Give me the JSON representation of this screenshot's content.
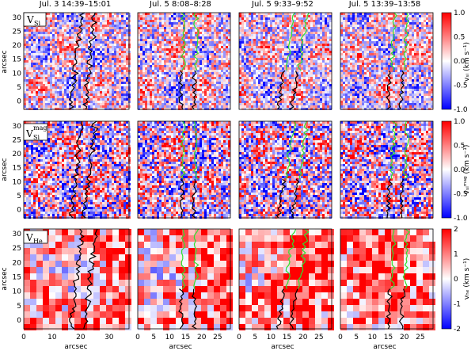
{
  "columns": [
    {
      "label": "Jul. 3  14:39–15:01"
    },
    {
      "label": "Jul. 5  8:08–8:28"
    },
    {
      "label": "Jul. 5  9:33–9:52"
    },
    {
      "label": "Jul. 5  13:39–13:58"
    }
  ],
  "rows": [
    {
      "tag_main": "V",
      "tag_sub": "Si",
      "tag_sup": "",
      "cbar_label": "vₛᵢ (km s⁻¹)",
      "cbar_ticks": [
        "1.0",
        "0.5",
        "0.0",
        "-0.5",
        "-1.0"
      ],
      "y_ticks": [
        "30",
        "25",
        "20",
        "15",
        "10",
        "5",
        "0"
      ],
      "ylabel": "arcsec"
    },
    {
      "tag_main": "V",
      "tag_sub": "Si",
      "tag_sup": "mag",
      "cbar_label": "vₛᵢᵐᵃᵍ (km s⁻¹)",
      "cbar_ticks": [
        "1.0",
        "0.5",
        "0.0",
        "-0.5",
        "-1.0"
      ],
      "y_ticks": [
        "30",
        "25",
        "20",
        "15",
        "10",
        "5",
        "0"
      ],
      "ylabel": "arcsec"
    },
    {
      "tag_main": "V",
      "tag_sub": "He",
      "tag_sup": "",
      "cbar_label": "vₕₑ (km s⁻¹)",
      "cbar_ticks": [
        "2",
        "1",
        "0",
        "-1",
        "-2"
      ],
      "y_ticks": [
        "30",
        "25",
        "20",
        "15",
        "10",
        "5",
        "0"
      ],
      "ylabel": "arcsec"
    }
  ],
  "x_axes": [
    {
      "ticks": [
        "0",
        "10",
        "20",
        "30"
      ],
      "label": "arcsec"
    },
    {
      "ticks": [
        "0",
        "5",
        "10",
        "15",
        "20",
        "25"
      ],
      "label": "arcsec"
    },
    {
      "ticks": [
        "0",
        "5",
        "10",
        "15",
        "20",
        "25"
      ],
      "label": "arcsec"
    },
    {
      "ticks": [
        "0",
        "5",
        "10",
        "15",
        "20",
        "25"
      ],
      "label": "arcsec"
    }
  ],
  "colors": {
    "red": "#e8202a",
    "blue": "#1a2fe0",
    "white": "#ffffff",
    "contour_black": "#000000",
    "contour_green": "#2fe02f"
  }
}
